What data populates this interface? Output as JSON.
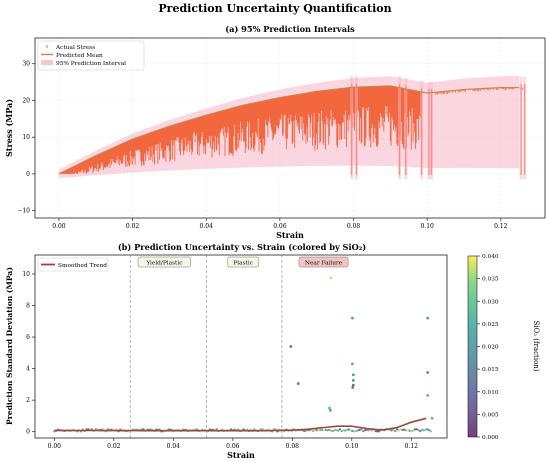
{
  "figure": {
    "title": "Prediction Uncertainty Quantification"
  },
  "colors": {
    "actual": "#f4a4a4",
    "mean": "#c8874a",
    "interval": "#f5b5c8",
    "fill": "#f2673e",
    "trend": "#9b4a3a",
    "near_failure_bg": "#f4c4c4"
  },
  "chart_data": [
    {
      "type": "line",
      "title": "(a) 95% Prediction Intervals",
      "xlabel": "Strain",
      "ylabel": "Stress (MPa)",
      "xlim": [
        -0.0065,
        0.132
      ],
      "ylim": [
        -12,
        37
      ],
      "xticks": [
        "0.00",
        "0.02",
        "0.04",
        "0.06",
        "0.08",
        "0.10",
        "0.12"
      ],
      "xtick_values": [
        0.0,
        0.02,
        0.04,
        0.06,
        0.08,
        0.1,
        0.12
      ],
      "yticks": [
        "−10",
        "0",
        "10",
        "20",
        "30"
      ],
      "ytick_values": [
        -10,
        0,
        10,
        20,
        30
      ],
      "grid": true,
      "legend": {
        "placement": "top-left",
        "entries": [
          "Actual Stress",
          "Predicted Mean",
          "95% Prediction Interval"
        ]
      },
      "series": [
        {
          "name": "Predicted Mean",
          "x": [
            0.0,
            0.01,
            0.02,
            0.03,
            0.04,
            0.05,
            0.06,
            0.07,
            0.08,
            0.09,
            0.1,
            0.11,
            0.12,
            0.125
          ],
          "y": [
            0.0,
            5.0,
            9.5,
            13.0,
            16.0,
            18.7,
            20.8,
            22.5,
            23.6,
            24.0,
            22.0,
            23.0,
            23.5,
            23.5
          ]
        }
      ],
      "collapse_points": [
        0.0795,
        0.0808,
        0.0925,
        0.0942,
        0.0985,
        0.1005,
        0.1012,
        0.1255,
        0.1265
      ]
    },
    {
      "type": "scatter",
      "title": "(b) Prediction Uncertainty vs. Strain (colored by SiO₂)",
      "xlabel": "Strain",
      "ylabel": "Prediction Standard Deviation (MPa)",
      "xlim": [
        -0.0065,
        0.132
      ],
      "ylim": [
        -0.4,
        11.2
      ],
      "xticks": [
        "0.00",
        "0.02",
        "0.04",
        "0.06",
        "0.08",
        "0.10",
        "0.12"
      ],
      "xtick_values": [
        0.0,
        0.02,
        0.04,
        0.06,
        0.08,
        0.1,
        0.12
      ],
      "yticks": [
        "0",
        "2",
        "4",
        "6",
        "8",
        "10"
      ],
      "ytick_values": [
        0,
        2,
        4,
        6,
        8,
        10
      ],
      "legend": {
        "placement": "top-left",
        "entries": [
          "Smoothed Trend"
        ]
      },
      "regions": [
        {
          "label": "Yield/Plastic",
          "x": 0.037
        },
        {
          "label": "Plastic",
          "x": 0.0635
        },
        {
          "label": "Near Failure",
          "x": 0.0905
        }
      ],
      "region_lines": [
        0.0255,
        0.0512,
        0.0765
      ],
      "points": [
        {
          "x": 0.0795,
          "y": 5.4,
          "c": 0.012
        },
        {
          "x": 0.082,
          "y": 3.05,
          "c": 0.018
        },
        {
          "x": 0.093,
          "y": 9.75,
          "c": 0.038
        },
        {
          "x": 0.0925,
          "y": 1.5,
          "c": 0.03
        },
        {
          "x": 0.0928,
          "y": 1.35,
          "c": 0.026
        },
        {
          "x": 0.1002,
          "y": 7.2,
          "c": 0.024
        },
        {
          "x": 0.1002,
          "y": 4.3,
          "c": 0.027
        },
        {
          "x": 0.1005,
          "y": 3.6,
          "c": 0.022
        },
        {
          "x": 0.1005,
          "y": 3.25,
          "c": 0.02
        },
        {
          "x": 0.1005,
          "y": 2.95,
          "c": 0.014
        },
        {
          "x": 0.1003,
          "y": 2.8,
          "c": 0.016
        },
        {
          "x": 0.1255,
          "y": 7.2,
          "c": 0.024
        },
        {
          "x": 0.1255,
          "y": 3.75,
          "c": 0.02
        },
        {
          "x": 0.1255,
          "y": 2.3,
          "c": 0.028
        },
        {
          "x": 0.127,
          "y": 0.85,
          "c": 0.03
        }
      ],
      "trend": {
        "name": "Smoothed Trend",
        "x": [
          0.0,
          0.02,
          0.04,
          0.06,
          0.07,
          0.08,
          0.085,
          0.09,
          0.095,
          0.1,
          0.105,
          0.11,
          0.115,
          0.12,
          0.125
        ],
        "y": [
          0.08,
          0.07,
          0.06,
          0.06,
          0.06,
          0.1,
          0.15,
          0.25,
          0.35,
          0.35,
          0.2,
          0.1,
          0.25,
          0.6,
          0.85
        ]
      }
    }
  ],
  "colorbar": {
    "label": "SiO₂ (fraction)",
    "min": 0.0,
    "max": 0.04,
    "ticks": [
      "0.000",
      "0.005",
      "0.010",
      "0.015",
      "0.020",
      "0.025",
      "0.030",
      "0.035",
      "0.040"
    ],
    "tick_values": [
      0.0,
      0.005,
      0.01,
      0.015,
      0.02,
      0.025,
      0.03,
      0.035,
      0.04
    ],
    "colormap": "viridis"
  }
}
